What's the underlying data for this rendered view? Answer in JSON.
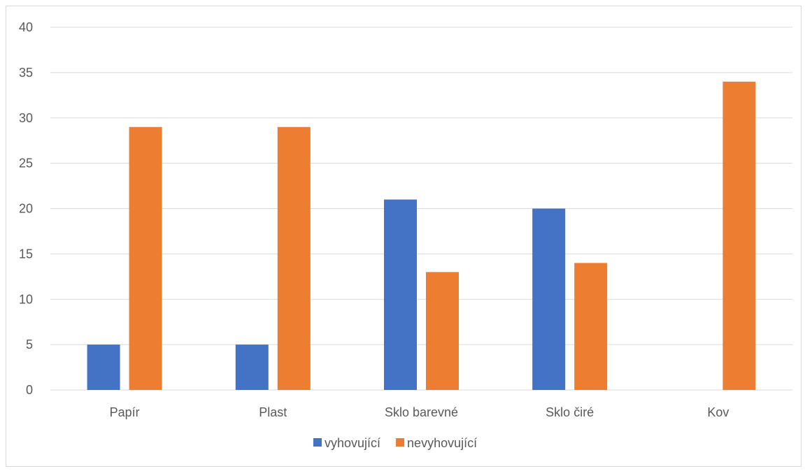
{
  "chart_data": {
    "type": "bar",
    "title": "",
    "xlabel": "",
    "ylabel": "",
    "categories": [
      "Papír",
      "Plast",
      "Sklo barevné",
      "Sklo čiré",
      "Kov"
    ],
    "series": [
      {
        "name": "vyhovující",
        "color": "#4472C4",
        "values": [
          5,
          5,
          21,
          20,
          0
        ]
      },
      {
        "name": "nevyhovující",
        "color": "#ED7D31",
        "values": [
          29,
          29,
          13,
          14,
          34
        ]
      }
    ],
    "ylim": [
      0,
      40
    ],
    "yticks": [
      0,
      5,
      10,
      15,
      20,
      25,
      30,
      35,
      40
    ],
    "grid": true,
    "legend": "bottom-center"
  }
}
